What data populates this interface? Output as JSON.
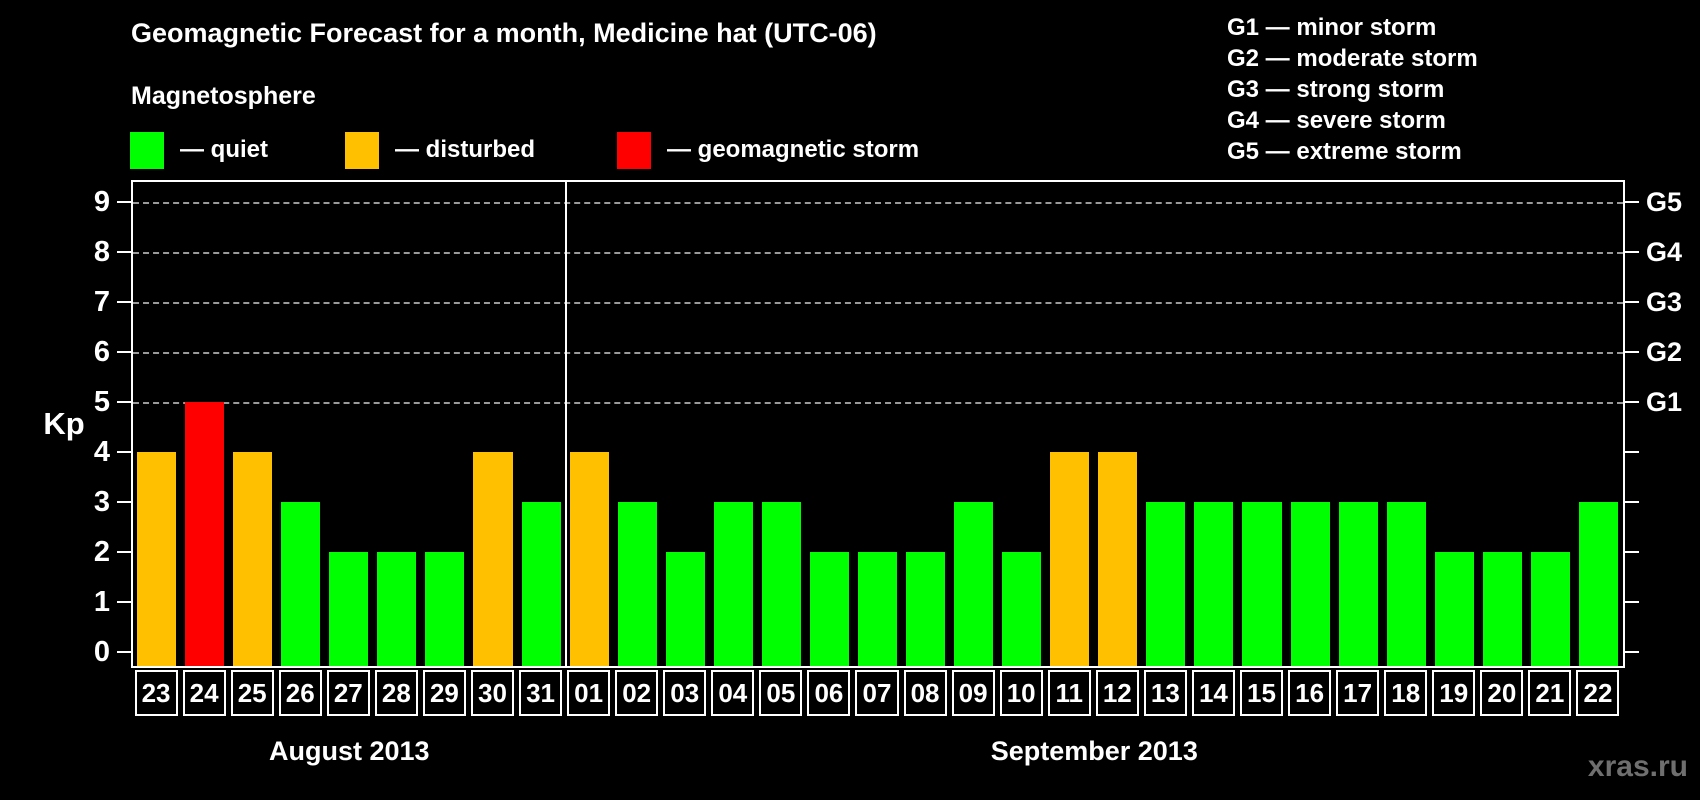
{
  "page": {
    "title": "Geomagnetic Forecast for a month, Medicine hat (UTC-06)",
    "watermark": "xras.ru"
  },
  "magnetosphere_legend": {
    "heading": "Magnetosphere",
    "items": [
      {
        "name": "quiet",
        "label": "— quiet",
        "color": "#00ff00"
      },
      {
        "name": "disturbed",
        "label": "— disturbed",
        "color": "#ffc000"
      },
      {
        "name": "storm",
        "label": "— geomagnetic storm",
        "color": "#ff0000"
      }
    ]
  },
  "g_legend": {
    "items": [
      "G1 — minor storm",
      "G2 — moderate storm",
      "G3 — strong storm",
      "G4 — severe storm",
      "G5 — extreme storm"
    ]
  },
  "chart_data": {
    "type": "bar",
    "title": "Geomagnetic Forecast for a month, Medicine hat (UTC-06)",
    "ylabel": "Kp",
    "ylim": [
      0,
      9
    ],
    "y_ticks": [
      0,
      1,
      2,
      3,
      4,
      5,
      6,
      7,
      8,
      9
    ],
    "grid": "horizontal dashed gridlines at Kp 5 through 9 only",
    "gridline_levels": [
      5,
      6,
      7,
      8,
      9
    ],
    "right_axis": [
      {
        "kp": 5,
        "label": "G1"
      },
      {
        "kp": 6,
        "label": "G2"
      },
      {
        "kp": 7,
        "label": "G3"
      },
      {
        "kp": 8,
        "label": "G4"
      },
      {
        "kp": 9,
        "label": "G5"
      }
    ],
    "status_colors": {
      "quiet": "#00ff00",
      "disturbed": "#ffc000",
      "storm": "#ff0000"
    },
    "months": [
      {
        "label": "August 2013",
        "days": [
          {
            "day": "23",
            "kp": 4,
            "status": "disturbed"
          },
          {
            "day": "24",
            "kp": 5,
            "status": "storm"
          },
          {
            "day": "25",
            "kp": 4,
            "status": "disturbed"
          },
          {
            "day": "26",
            "kp": 3,
            "status": "quiet"
          },
          {
            "day": "27",
            "kp": 2,
            "status": "quiet"
          },
          {
            "day": "28",
            "kp": 2,
            "status": "quiet"
          },
          {
            "day": "29",
            "kp": 2,
            "status": "quiet"
          },
          {
            "day": "30",
            "kp": 4,
            "status": "disturbed"
          },
          {
            "day": "31",
            "kp": 3,
            "status": "quiet"
          }
        ]
      },
      {
        "label": "September 2013",
        "days": [
          {
            "day": "01",
            "kp": 4,
            "status": "disturbed"
          },
          {
            "day": "02",
            "kp": 3,
            "status": "quiet"
          },
          {
            "day": "03",
            "kp": 2,
            "status": "quiet"
          },
          {
            "day": "04",
            "kp": 3,
            "status": "quiet"
          },
          {
            "day": "05",
            "kp": 3,
            "status": "quiet"
          },
          {
            "day": "06",
            "kp": 2,
            "status": "quiet"
          },
          {
            "day": "07",
            "kp": 2,
            "status": "quiet"
          },
          {
            "day": "08",
            "kp": 2,
            "status": "quiet"
          },
          {
            "day": "09",
            "kp": 3,
            "status": "quiet"
          },
          {
            "day": "10",
            "kp": 2,
            "status": "quiet"
          },
          {
            "day": "11",
            "kp": 4,
            "status": "disturbed"
          },
          {
            "day": "12",
            "kp": 4,
            "status": "disturbed"
          },
          {
            "day": "13",
            "kp": 3,
            "status": "quiet"
          },
          {
            "day": "14",
            "kp": 3,
            "status": "quiet"
          },
          {
            "day": "15",
            "kp": 3,
            "status": "quiet"
          },
          {
            "day": "16",
            "kp": 3,
            "status": "quiet"
          },
          {
            "day": "17",
            "kp": 3,
            "status": "quiet"
          },
          {
            "day": "18",
            "kp": 3,
            "status": "quiet"
          },
          {
            "day": "19",
            "kp": 2,
            "status": "quiet"
          },
          {
            "day": "20",
            "kp": 2,
            "status": "quiet"
          },
          {
            "day": "21",
            "kp": 2,
            "status": "quiet"
          },
          {
            "day": "22",
            "kp": 3,
            "status": "quiet"
          }
        ]
      }
    ]
  }
}
